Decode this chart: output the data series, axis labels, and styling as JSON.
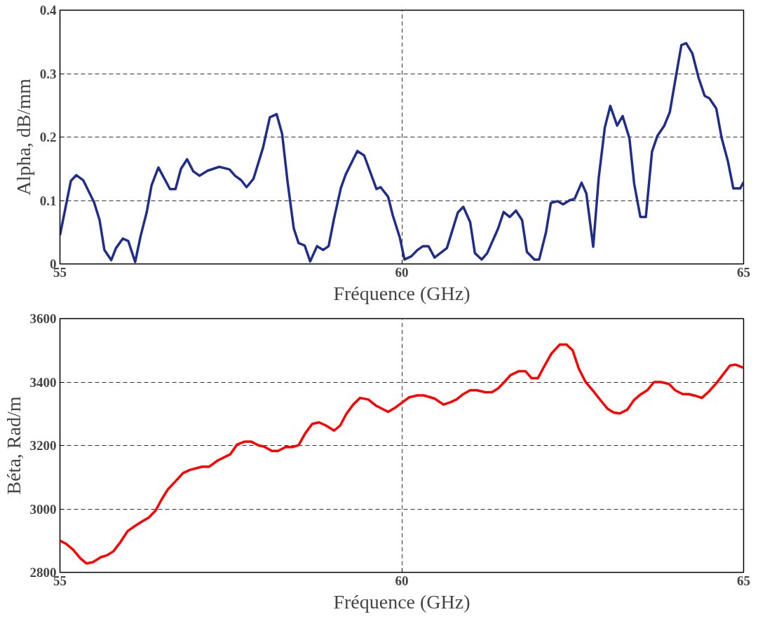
{
  "chart_data": [
    {
      "type": "line",
      "xlabel": "Fréquence (GHz)",
      "ylabel": "Alpha, dB/mm",
      "xlim": [
        55,
        65
      ],
      "ylim": [
        0,
        0.4
      ],
      "xticks": [
        55,
        60,
        65
      ],
      "yticks": [
        0,
        0.1,
        0.2,
        0.3,
        0.4
      ],
      "grid": true,
      "x": [
        55.0,
        55.16,
        55.24,
        55.34,
        55.5,
        55.58,
        55.65,
        55.75,
        55.82,
        55.92,
        56.0,
        56.1,
        56.18,
        56.27,
        56.34,
        56.44,
        56.61,
        56.69,
        56.77,
        56.86,
        56.95,
        57.04,
        57.16,
        57.33,
        57.48,
        57.56,
        57.65,
        57.73,
        57.83,
        57.97,
        58.07,
        58.17,
        58.25,
        58.33,
        58.42,
        58.49,
        58.58,
        58.66,
        58.76,
        58.85,
        58.93,
        59.01,
        59.11,
        59.18,
        59.35,
        59.45,
        59.63,
        59.69,
        59.8,
        59.87,
        59.97,
        60.04,
        60.14,
        60.23,
        60.31,
        60.39,
        60.48,
        60.66,
        60.82,
        60.9,
        61.0,
        61.07,
        61.17,
        61.25,
        61.41,
        61.49,
        61.58,
        61.67,
        61.76,
        61.83,
        61.94,
        62.01,
        62.11,
        62.18,
        62.28,
        62.36,
        62.45,
        62.53,
        62.63,
        62.7,
        62.8,
        62.88,
        62.97,
        63.05,
        63.15,
        63.23,
        63.33,
        63.4,
        63.49,
        63.57,
        63.66,
        63.74,
        63.84,
        63.92,
        63.99,
        64.09,
        64.16,
        64.25,
        64.34,
        64.43,
        64.5,
        64.6,
        64.68,
        64.77,
        64.85,
        64.95,
        65.0
      ],
      "series": [
        {
          "color": "#1f2e8a",
          "values": [
            0.045,
            0.131,
            0.14,
            0.132,
            0.097,
            0.069,
            0.022,
            0.006,
            0.025,
            0.04,
            0.036,
            0.003,
            0.044,
            0.082,
            0.124,
            0.152,
            0.118,
            0.118,
            0.15,
            0.165,
            0.146,
            0.139,
            0.147,
            0.153,
            0.149,
            0.139,
            0.132,
            0.121,
            0.134,
            0.183,
            0.231,
            0.236,
            0.205,
            0.129,
            0.056,
            0.033,
            0.029,
            0.004,
            0.028,
            0.022,
            0.028,
            0.072,
            0.12,
            0.141,
            0.178,
            0.171,
            0.118,
            0.121,
            0.106,
            0.076,
            0.042,
            0.007,
            0.012,
            0.022,
            0.028,
            0.028,
            0.01,
            0.025,
            0.081,
            0.09,
            0.066,
            0.017,
            0.007,
            0.017,
            0.056,
            0.082,
            0.074,
            0.084,
            0.069,
            0.019,
            0.007,
            0.007,
            0.05,
            0.096,
            0.099,
            0.094,
            0.1,
            0.103,
            0.128,
            0.111,
            0.027,
            0.135,
            0.215,
            0.249,
            0.218,
            0.233,
            0.198,
            0.126,
            0.074,
            0.074,
            0.177,
            0.202,
            0.218,
            0.239,
            0.283,
            0.345,
            0.348,
            0.332,
            0.294,
            0.265,
            0.261,
            0.245,
            0.198,
            0.162,
            0.119,
            0.119,
            0.129
          ]
        }
      ]
    },
    {
      "type": "line",
      "xlabel": "Fréquence (GHz)",
      "ylabel": "Béta, Rad/m",
      "xlim": [
        55,
        65
      ],
      "ylim": [
        2800,
        3600
      ],
      "xticks": [
        55,
        60,
        65
      ],
      "yticks": [
        2800,
        3000,
        3200,
        3400,
        3600
      ],
      "grid": true,
      "x": [
        55.0,
        55.09,
        55.19,
        55.3,
        55.39,
        55.48,
        55.6,
        55.69,
        55.78,
        55.88,
        55.99,
        56.11,
        56.2,
        56.3,
        56.4,
        56.48,
        56.58,
        56.69,
        56.8,
        56.9,
        57.08,
        57.18,
        57.31,
        57.49,
        57.59,
        57.7,
        57.8,
        57.91,
        57.99,
        58.1,
        58.19,
        58.3,
        58.4,
        58.49,
        58.59,
        58.69,
        58.79,
        58.89,
        59.01,
        59.1,
        59.19,
        59.29,
        59.39,
        59.51,
        59.62,
        59.8,
        59.91,
        60.02,
        60.11,
        60.23,
        60.32,
        60.48,
        60.61,
        60.71,
        60.8,
        60.9,
        61.0,
        61.1,
        61.22,
        61.32,
        61.41,
        61.5,
        61.59,
        61.71,
        61.81,
        61.9,
        61.99,
        62.09,
        62.19,
        62.31,
        62.41,
        62.5,
        62.59,
        62.69,
        62.8,
        62.91,
        63.01,
        63.1,
        63.19,
        63.3,
        63.4,
        63.5,
        63.59,
        63.69,
        63.79,
        63.91,
        64.0,
        64.11,
        64.2,
        64.29,
        64.39,
        64.5,
        64.6,
        64.7,
        64.8,
        64.88,
        65.0
      ],
      "series": [
        {
          "color": "#ff0000",
          "values": [
            2900,
            2890,
            2872,
            2844,
            2828,
            2832,
            2848,
            2854,
            2866,
            2894,
            2930,
            2948,
            2960,
            2973,
            2995,
            3027,
            3062,
            3087,
            3113,
            3123,
            3133,
            3133,
            3153,
            3172,
            3203,
            3212,
            3212,
            3200,
            3196,
            3183,
            3183,
            3195,
            3195,
            3201,
            3239,
            3268,
            3273,
            3263,
            3247,
            3263,
            3300,
            3329,
            3350,
            3345,
            3326,
            3306,
            3320,
            3338,
            3352,
            3358,
            3358,
            3348,
            3329,
            3336,
            3345,
            3362,
            3374,
            3374,
            3368,
            3368,
            3380,
            3400,
            3422,
            3434,
            3434,
            3412,
            3412,
            3452,
            3490,
            3518,
            3518,
            3500,
            3442,
            3400,
            3372,
            3342,
            3316,
            3304,
            3301,
            3313,
            3344,
            3362,
            3374,
            3400,
            3400,
            3394,
            3374,
            3362,
            3362,
            3357,
            3350,
            3372,
            3396,
            3424,
            3452,
            3455,
            3445
          ]
        }
      ]
    }
  ]
}
